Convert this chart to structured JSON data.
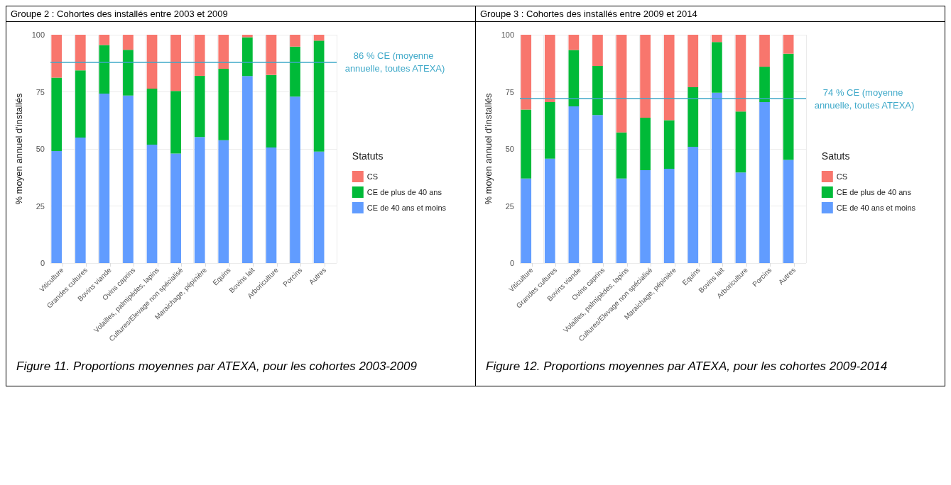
{
  "chart_data": [
    {
      "type": "bar",
      "stacked": true,
      "title": "Groupe 2 : Cohortes des installés entre 2003 et 2009",
      "ylabel": "% moyen annuel d'installés",
      "legend_title": "Statuts",
      "legend": "right",
      "grid": true,
      "categories": [
        "Viticulture",
        "Grandes cultures",
        "Bovins viande",
        "Ovins caprins",
        "Volailles, palmipèdes, lapins",
        "Cultures/Elevage non spécialisé",
        "Maraichage, pépinière",
        "Equins",
        "Bovins lait",
        "Arboriculture",
        "Porcins",
        "Autres"
      ],
      "ylim": [
        0,
        100
      ],
      "yticks": [
        0,
        25,
        50,
        75,
        100
      ],
      "series": [
        {
          "name": "CE de 40 ans et moins",
          "color": "#619cff",
          "values": [
            49.1,
            55,
            74.2,
            73.4,
            51.9,
            48,
            55.2,
            53.8,
            81.9,
            50.6,
            72.9,
            48.8
          ]
        },
        {
          "name": "CE de plus de 40 ans",
          "color": "#00ba38",
          "values": [
            32.1,
            29.4,
            21.3,
            20,
            24.5,
            27.4,
            26.8,
            31.3,
            17,
            31.8,
            21.9,
            48.6
          ]
        },
        {
          "name": "CS",
          "color": "#f8766d",
          "values": [
            18.8,
            15.6,
            4.5,
            6.6,
            23.6,
            24.6,
            18,
            14.9,
            1.1,
            17.6,
            5.2,
            2.6
          ]
        }
      ],
      "ref_lines": [
        {
          "axis": "y",
          "value": 88,
          "label": "86 % CE (moyenne annuelle, toutes ATEXA)",
          "color": "#3fa9c9"
        }
      ],
      "annotations": [
        "Figure 11. Proportions moyennes par ATEXA, pour les cohortes 2003-2009"
      ]
    },
    {
      "type": "bar",
      "stacked": true,
      "title": "Groupe 3 : Cohortes des installés entre 2009 et 2014",
      "ylabel": "% moyen annuel d'installés",
      "legend_title": "Satuts",
      "legend": "right",
      "grid": true,
      "categories": [
        "Viticulture",
        "Grandes cultures",
        "Bovins viande",
        "Ovins caprins",
        "Volailles, palmipèdes, lapins",
        "Cultures/Elevage non spécialisé",
        "Maraichage, pépinière",
        "Equins",
        "Bovins lait",
        "Arboriculture",
        "Porcins",
        "Autres"
      ],
      "ylim": [
        0,
        100
      ],
      "yticks": [
        0,
        25,
        50,
        75,
        100
      ],
      "series": [
        {
          "name": "CE de 40 ans et moins",
          "color": "#619cff",
          "values": [
            37,
            45.7,
            68.6,
            64.8,
            37,
            40.7,
            41.3,
            50.9,
            74.6,
            39.7,
            70.5,
            45.2
          ]
        },
        {
          "name": "CE de plus de 40 ans",
          "color": "#00ba38",
          "values": [
            30.2,
            24.8,
            24.7,
            21.5,
            20.2,
            23,
            21.3,
            26.1,
            22.2,
            26.7,
            15.5,
            46.5
          ]
        },
        {
          "name": "CS",
          "color": "#f8766d",
          "values": [
            32.8,
            29.5,
            6.7,
            13.7,
            42.8,
            36.3,
            37.4,
            23,
            3.2,
            33.6,
            14,
            8.3
          ]
        }
      ],
      "ref_lines": [
        {
          "axis": "y",
          "value": 72,
          "label": "74 % CE (moyenne annuelle, toutes ATEXA)",
          "color": "#3fa9c9"
        }
      ],
      "annotations": [
        "Figure 12. Proportions moyennes par ATEXA, pour les cohortes 2009-2014"
      ]
    }
  ]
}
